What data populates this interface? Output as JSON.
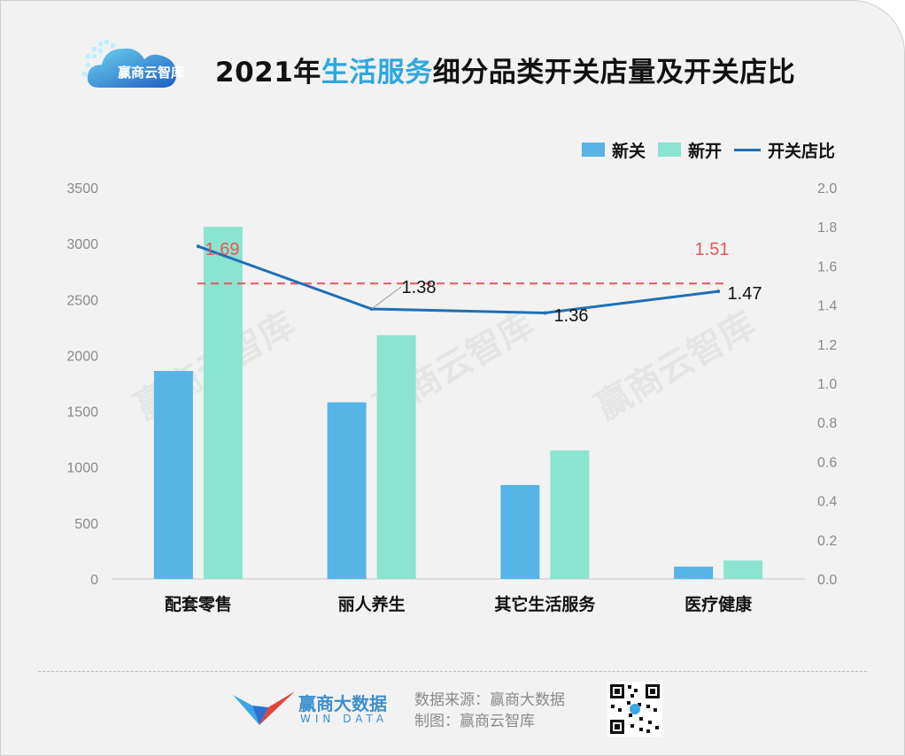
{
  "header": {
    "title_prefix": "2021年",
    "title_highlight": "生活服务",
    "title_suffix": "细分品类开关店量及开关店比",
    "logo_text": "赢商云智库"
  },
  "watermark_text": "赢商云智库",
  "legend": [
    {
      "name": "新关",
      "color": "#56b4e6",
      "kind": "bar"
    },
    {
      "name": "新开",
      "color": "#8ae4d0",
      "kind": "bar"
    },
    {
      "name": "开关店比",
      "color": "#1f6fb5",
      "kind": "line"
    }
  ],
  "chart_data": {
    "type": "bar",
    "categories": [
      "配套零售",
      "丽人养生",
      "其它生活服务",
      "医疗健康"
    ],
    "series": [
      {
        "name": "新关",
        "values": [
          1860,
          1580,
          840,
          110
        ],
        "color": "#56b4e6"
      },
      {
        "name": "新开",
        "values": [
          3150,
          2180,
          1150,
          165
        ],
        "color": "#8ae4d0"
      }
    ],
    "line_series": {
      "name": "开关店比",
      "values": [
        1.7,
        1.38,
        1.36,
        1.47
      ],
      "labels": [
        "1.69",
        "1.38",
        "1.36",
        "1.47"
      ],
      "color": "#1f6fb5",
      "axis": "right"
    },
    "reference_line": {
      "value": 1.51,
      "label": "1.51",
      "color": "#e8565a",
      "style": "dashed"
    },
    "yleft": {
      "ylim": [
        0,
        3500
      ],
      "ticks": [
        "0",
        "500",
        "1000",
        "1500",
        "2000",
        "2500",
        "3000",
        "3500"
      ]
    },
    "yright": {
      "ylim": [
        0,
        2.0
      ],
      "ticks": [
        "0.0",
        "0.2",
        "0.4",
        "0.6",
        "0.8",
        "1.0",
        "1.2",
        "1.4",
        "1.6",
        "1.8",
        "2.0"
      ]
    },
    "xlabel": "",
    "ylabel": "",
    "grid": false,
    "legend_position": "top-right"
  },
  "footer": {
    "brand_name": "赢商大数据",
    "brand_en": "WIN DATA",
    "source_line": "数据来源：赢商大数据",
    "made_by_line": "制图：赢商云智库"
  }
}
